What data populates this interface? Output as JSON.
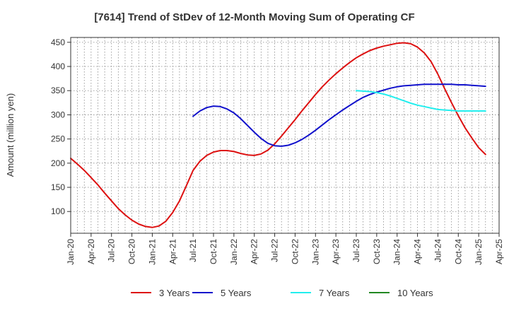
{
  "chart_data": {
    "type": "line",
    "title": "[7614]  Trend of StDev of 12-Month Moving Sum of Operating CF",
    "ylabel": "Amount (million yen)",
    "xlabel": "",
    "ylim": [
      55,
      460
    ],
    "yticks": [
      100,
      150,
      200,
      250,
      300,
      350,
      400,
      450
    ],
    "xlim": [
      "2020-01",
      "2025-04"
    ],
    "xticks": [
      "Jan-20",
      "Apr-20",
      "Jul-20",
      "Oct-20",
      "Jan-21",
      "Apr-21",
      "Jul-21",
      "Oct-21",
      "Jan-22",
      "Apr-22",
      "Jul-22",
      "Oct-22",
      "Jan-23",
      "Apr-23",
      "Jul-23",
      "Oct-23",
      "Jan-24",
      "Apr-24",
      "Jul-24",
      "Oct-24",
      "Jan-25",
      "Apr-25"
    ],
    "grid": true,
    "legend_position": "bottom",
    "series": [
      {
        "name": "3 Years",
        "color": "#dd1111",
        "points": [
          [
            "2020-01",
            210
          ],
          [
            "2020-02",
            198
          ],
          [
            "2020-03",
            185
          ],
          [
            "2020-04",
            170
          ],
          [
            "2020-05",
            155
          ],
          [
            "2020-06",
            138
          ],
          [
            "2020-07",
            122
          ],
          [
            "2020-08",
            106
          ],
          [
            "2020-09",
            93
          ],
          [
            "2020-10",
            82
          ],
          [
            "2020-11",
            74
          ],
          [
            "2020-12",
            69
          ],
          [
            "2021-01",
            67
          ],
          [
            "2021-02",
            70
          ],
          [
            "2021-03",
            80
          ],
          [
            "2021-04",
            98
          ],
          [
            "2021-05",
            122
          ],
          [
            "2021-06",
            153
          ],
          [
            "2021-07",
            185
          ],
          [
            "2021-08",
            204
          ],
          [
            "2021-09",
            216
          ],
          [
            "2021-10",
            223
          ],
          [
            "2021-11",
            226
          ],
          [
            "2021-12",
            226
          ],
          [
            "2022-01",
            224
          ],
          [
            "2022-02",
            220
          ],
          [
            "2022-03",
            217
          ],
          [
            "2022-04",
            216
          ],
          [
            "2022-05",
            219
          ],
          [
            "2022-06",
            227
          ],
          [
            "2022-07",
            240
          ],
          [
            "2022-08",
            256
          ],
          [
            "2022-09",
            273
          ],
          [
            "2022-10",
            290
          ],
          [
            "2022-11",
            308
          ],
          [
            "2022-12",
            325
          ],
          [
            "2023-01",
            342
          ],
          [
            "2023-02",
            358
          ],
          [
            "2023-03",
            372
          ],
          [
            "2023-04",
            385
          ],
          [
            "2023-05",
            397
          ],
          [
            "2023-06",
            408
          ],
          [
            "2023-07",
            418
          ],
          [
            "2023-08",
            426
          ],
          [
            "2023-09",
            433
          ],
          [
            "2023-10",
            438
          ],
          [
            "2023-11",
            442
          ],
          [
            "2023-12",
            445
          ],
          [
            "2024-01",
            448
          ],
          [
            "2024-02",
            449
          ],
          [
            "2024-03",
            447
          ],
          [
            "2024-04",
            440
          ],
          [
            "2024-05",
            428
          ],
          [
            "2024-06",
            410
          ],
          [
            "2024-07",
            384
          ],
          [
            "2024-08",
            354
          ],
          [
            "2024-09",
            325
          ],
          [
            "2024-10",
            298
          ],
          [
            "2024-11",
            273
          ],
          [
            "2024-12",
            252
          ],
          [
            "2025-01",
            232
          ],
          [
            "2025-02",
            218
          ]
        ]
      },
      {
        "name": "5 Years",
        "color": "#1111cc",
        "points": [
          [
            "2021-07",
            297
          ],
          [
            "2021-08",
            308
          ],
          [
            "2021-09",
            315
          ],
          [
            "2021-10",
            318
          ],
          [
            "2021-11",
            317
          ],
          [
            "2021-12",
            312
          ],
          [
            "2022-01",
            304
          ],
          [
            "2022-02",
            292
          ],
          [
            "2022-03",
            278
          ],
          [
            "2022-04",
            264
          ],
          [
            "2022-05",
            251
          ],
          [
            "2022-06",
            241
          ],
          [
            "2022-07",
            236
          ],
          [
            "2022-08",
            235
          ],
          [
            "2022-09",
            237
          ],
          [
            "2022-10",
            242
          ],
          [
            "2022-11",
            249
          ],
          [
            "2022-12",
            258
          ],
          [
            "2023-01",
            268
          ],
          [
            "2023-02",
            279
          ],
          [
            "2023-03",
            290
          ],
          [
            "2023-04",
            300
          ],
          [
            "2023-05",
            310
          ],
          [
            "2023-06",
            319
          ],
          [
            "2023-07",
            328
          ],
          [
            "2023-08",
            336
          ],
          [
            "2023-09",
            342
          ],
          [
            "2023-10",
            347
          ],
          [
            "2023-11",
            351
          ],
          [
            "2023-12",
            355
          ],
          [
            "2024-01",
            358
          ],
          [
            "2024-02",
            360
          ],
          [
            "2024-03",
            361
          ],
          [
            "2024-04",
            362
          ],
          [
            "2024-05",
            363
          ],
          [
            "2024-06",
            363
          ],
          [
            "2024-07",
            363
          ],
          [
            "2024-08",
            363
          ],
          [
            "2024-09",
            363
          ],
          [
            "2024-10",
            362
          ],
          [
            "2024-11",
            362
          ],
          [
            "2024-12",
            361
          ],
          [
            "2025-01",
            360
          ],
          [
            "2025-02",
            359
          ]
        ]
      },
      {
        "name": "7 Years",
        "color": "#22eeee",
        "points": [
          [
            "2023-07",
            350
          ],
          [
            "2023-08",
            349
          ],
          [
            "2023-09",
            348
          ],
          [
            "2023-10",
            346
          ],
          [
            "2023-11",
            343
          ],
          [
            "2023-12",
            339
          ],
          [
            "2024-01",
            334
          ],
          [
            "2024-02",
            329
          ],
          [
            "2024-03",
            324
          ],
          [
            "2024-04",
            320
          ],
          [
            "2024-05",
            317
          ],
          [
            "2024-06",
            314
          ],
          [
            "2024-07",
            311
          ],
          [
            "2024-08",
            310
          ],
          [
            "2024-09",
            309
          ],
          [
            "2024-10",
            308
          ],
          [
            "2024-11",
            308
          ],
          [
            "2024-12",
            308
          ],
          [
            "2025-01",
            308
          ],
          [
            "2025-02",
            308
          ]
        ]
      },
      {
        "name": "10 Years",
        "color": "#228822",
        "points": []
      }
    ]
  }
}
